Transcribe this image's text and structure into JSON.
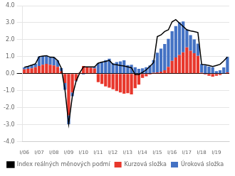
{
  "chart_data": {
    "type": "bar",
    "stacked": true,
    "categories": [
      "I/06",
      null,
      null,
      null,
      "I/07",
      null,
      null,
      null,
      "I/08",
      null,
      null,
      null,
      "I/09",
      null,
      null,
      null,
      "I/10",
      null,
      null,
      null,
      "I/11",
      null,
      null,
      null,
      "I/12",
      null,
      null,
      null,
      "I/13",
      null,
      null,
      null,
      "I/14",
      null,
      null,
      null,
      "I/15",
      null,
      null,
      null,
      "I/16",
      null,
      null,
      null,
      "I/17",
      null,
      null,
      null,
      "I/18",
      null,
      null,
      null,
      "I/19",
      null,
      null,
      null
    ],
    "series": [
      {
        "name": "Kurzová složka",
        "type": "bar",
        "color": "#e8372c",
        "values": [
          0.25,
          0.28,
          0.32,
          0.38,
          0.45,
          0.52,
          0.58,
          0.52,
          0.48,
          0.4,
          0.15,
          -0.55,
          -2.45,
          -1.1,
          -0.4,
          0.05,
          0.45,
          0.4,
          0.35,
          0.3,
          -0.5,
          -0.6,
          -0.75,
          -0.82,
          -0.92,
          -1.02,
          -1.1,
          -1.18,
          -1.15,
          -1.22,
          -0.85,
          -0.65,
          -0.25,
          -0.15,
          -0.05,
          0.05,
          0.08,
          0.12,
          0.2,
          0.4,
          0.75,
          0.95,
          1.1,
          1.25,
          1.55,
          1.35,
          1.2,
          1.05,
          0.05,
          -0.05,
          -0.12,
          -0.18,
          -0.12,
          -0.08,
          0.02,
          0.08
        ]
      },
      {
        "name": "Úroková složka",
        "type": "bar",
        "color": "#4472c4",
        "values": [
          0.12,
          0.15,
          0.18,
          0.2,
          0.55,
          0.52,
          0.48,
          0.45,
          0.48,
          0.38,
          0.18,
          -0.4,
          -0.52,
          -0.22,
          -0.05,
          0.0,
          -0.05,
          0.0,
          0.05,
          0.1,
          0.62,
          0.7,
          0.8,
          0.88,
          0.62,
          0.68,
          0.72,
          0.78,
          0.5,
          0.52,
          0.38,
          0.28,
          0.32,
          0.38,
          0.48,
          0.75,
          1.15,
          1.35,
          1.55,
          1.65,
          1.75,
          1.85,
          1.92,
          1.82,
          1.05,
          0.92,
          0.82,
          0.72,
          0.52,
          0.48,
          0.42,
          0.38,
          0.15,
          0.2,
          0.35,
          0.9
        ]
      },
      {
        "name": "Index reálných měnových podmí",
        "type": "line",
        "color": "#000000",
        "values": [
          0.38,
          0.43,
          0.5,
          0.58,
          1.0,
          1.04,
          1.06,
          0.97,
          0.96,
          0.78,
          0.33,
          -0.95,
          -2.97,
          -1.32,
          -0.45,
          0.05,
          0.4,
          0.4,
          0.4,
          0.4,
          0.62,
          0.68,
          0.72,
          0.78,
          0.55,
          0.52,
          0.48,
          0.45,
          0.4,
          0.35,
          -0.05,
          -0.05,
          0.08,
          0.22,
          0.43,
          0.65,
          2.18,
          2.28,
          2.48,
          2.58,
          3.05,
          3.18,
          2.98,
          2.78,
          2.58,
          2.52,
          2.48,
          2.42,
          0.55,
          0.52,
          0.48,
          0.42,
          0.48,
          0.55,
          0.75,
          0.98
        ]
      }
    ],
    "ylim": [
      -4.0,
      4.0
    ],
    "yticks": [
      {
        "value": -4.0,
        "label": "-4.0"
      },
      {
        "value": -3.0,
        "label": "-3.0"
      },
      {
        "value": -2.0,
        "label": "-2.0"
      },
      {
        "value": -1.0,
        "label": "-1.0"
      },
      {
        "value": 0.0,
        "label": "0.0"
      },
      {
        "value": 1.0,
        "label": "1.0"
      },
      {
        "value": 2.0,
        "label": "2.0"
      },
      {
        "value": 3.0,
        "label": "3.0"
      },
      {
        "value": 4.0,
        "label": "4.0"
      }
    ],
    "grid": true,
    "legend": "bottom"
  }
}
